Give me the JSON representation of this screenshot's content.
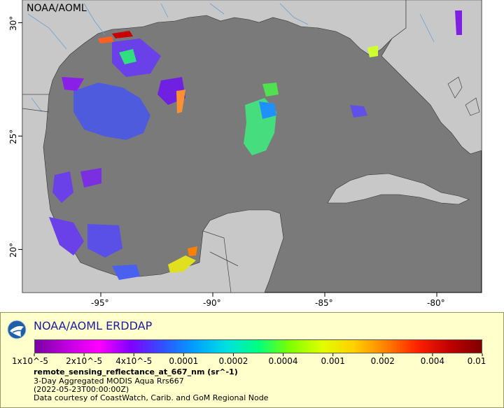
{
  "map": {
    "source_label": "NOAA/AOML",
    "lon_ticks": [
      {
        "value": -95,
        "label": "-95°"
      },
      {
        "value": -90,
        "label": "-90°"
      },
      {
        "value": -85,
        "label": "-85°"
      },
      {
        "value": -80,
        "label": "-80°"
      }
    ],
    "lat_ticks": [
      {
        "value": 30,
        "label": "30°"
      },
      {
        "value": 25,
        "label": "25°"
      },
      {
        "value": 20,
        "label": "20°"
      }
    ],
    "lon_range": [
      -98.5,
      -78
    ],
    "lat_range": [
      18.1,
      31
    ],
    "colors": {
      "ocean": "#7a7a7a",
      "land": "#c8c8c8",
      "rivers": "#6aa0d0",
      "borders": "#404040"
    }
  },
  "legend": {
    "title": "NOAA/AOML ERDDAP",
    "colorbar_ticks": [
      "1x10^-5",
      "2x10^-5",
      "4x10^-5",
      "0.0001",
      "0.0002",
      "0.0004",
      "0.001",
      "0.002",
      "0.004",
      "0.01"
    ],
    "colorbar_colors": [
      "#7a00a0",
      "#c000e0",
      "#ff00ff",
      "#8000ff",
      "#3050ff",
      "#00a0ff",
      "#00e0e0",
      "#00ff80",
      "#80ff00",
      "#e0ff00",
      "#ffd000",
      "#ff8000",
      "#ff2000",
      "#c00000",
      "#800000"
    ],
    "variable": "remote_sensing_reflectance_at_667_nm (sr^-1)",
    "lines": [
      "3-Day Aggregated MODIS Aqua Rrs667",
      "(2022-05-23T00:00:00Z)",
      "Data courtesy of CoastWatch, Carib. and GoM Regional Node"
    ]
  }
}
